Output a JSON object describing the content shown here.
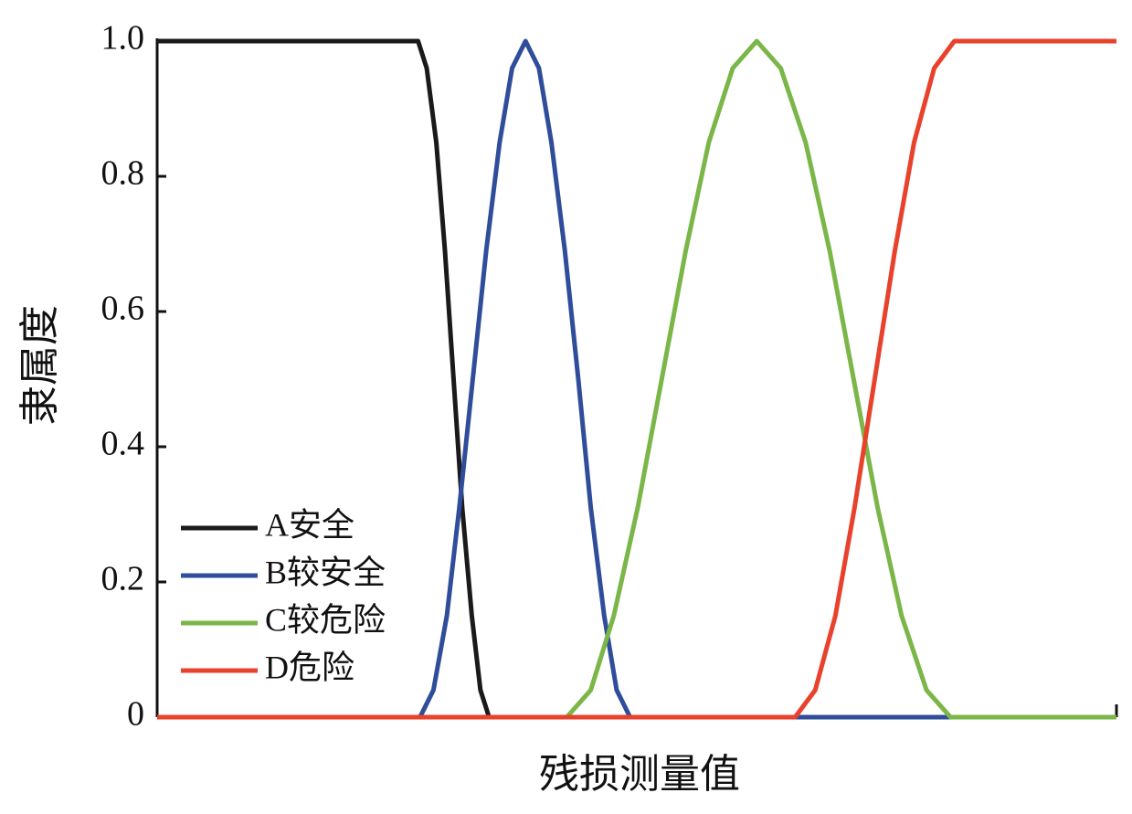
{
  "chart_data": {
    "type": "line",
    "ylabel": "隶属度",
    "xlabel": "残损测量值",
    "xlim": [
      0,
      100
    ],
    "ylim": [
      0,
      1
    ],
    "yticks": [
      0,
      0.2,
      0.4,
      0.6,
      0.8,
      {
        "value": 1,
        "label": "1.0"
      }
    ],
    "legend": "lower-left",
    "series": [
      {
        "name": "A安全",
        "color": "#1a1a1a",
        "x": [
          0,
          27.2,
          28.1,
          29.1,
          30.0,
          30.9,
          31.8,
          32.8,
          33.7,
          34.6,
          100
        ],
        "values": [
          1,
          1,
          0.96,
          0.85,
          0.69,
          0.5,
          0.31,
          0.15,
          0.04,
          0,
          0
        ]
      },
      {
        "name": "B较安全",
        "color": "#2f4d9a",
        "x": [
          0,
          27.4,
          28.8,
          30.2,
          31.5,
          32.9,
          34.3,
          35.7,
          37.0,
          38.4,
          39.8,
          41.1,
          42.5,
          43.9,
          45.2,
          46.6,
          47.9,
          49.3,
          100
        ],
        "values": [
          0,
          0,
          0.04,
          0.15,
          0.31,
          0.5,
          0.69,
          0.85,
          0.96,
          1,
          0.96,
          0.85,
          0.69,
          0.5,
          0.31,
          0.15,
          0.04,
          0,
          0
        ]
      },
      {
        "name": "C较危险",
        "color": "#7ab648",
        "x": [
          0,
          42.7,
          45.2,
          47.6,
          50.1,
          52.6,
          55.1,
          57.5,
          60.0,
          62.5,
          65.0,
          67.6,
          70.1,
          72.6,
          75.1,
          77.6,
          80.2,
          82.7,
          100
        ],
        "values": [
          0,
          0,
          0.04,
          0.15,
          0.31,
          0.5,
          0.69,
          0.85,
          0.96,
          1,
          0.96,
          0.85,
          0.69,
          0.5,
          0.31,
          0.15,
          0.04,
          0,
          0
        ]
      },
      {
        "name": "D危险",
        "color": "#e8412c",
        "x": [
          0,
          66.5,
          68.6,
          70.7,
          72.7,
          74.8,
          76.9,
          78.9,
          81.0,
          83.1,
          100
        ],
        "values": [
          0,
          0,
          0.04,
          0.15,
          0.31,
          0.5,
          0.69,
          0.85,
          0.96,
          1,
          1
        ]
      }
    ]
  }
}
